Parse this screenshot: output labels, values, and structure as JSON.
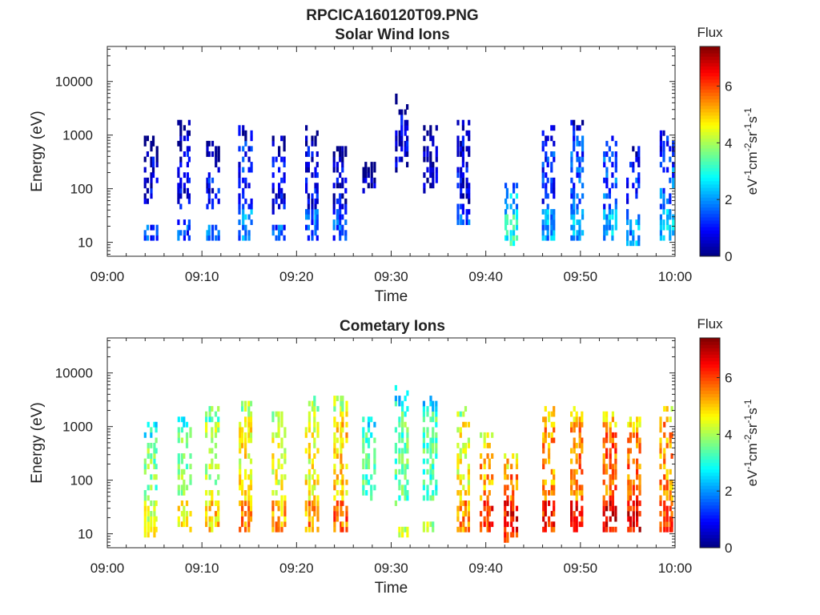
{
  "figure": {
    "title": "RPCICA160120T09.PNG"
  },
  "colorbar": {
    "title": "Flux",
    "label_main": "eV",
    "label_parts": [
      "eV",
      "-1",
      "cm",
      "-2",
      "sr",
      "-1",
      "s",
      "-1"
    ],
    "range": [
      0,
      7.4
    ],
    "ticks": [
      0,
      2,
      4,
      6
    ],
    "tick_labels": [
      "0",
      "2",
      "4",
      "6"
    ],
    "colormap": "jet"
  },
  "chart_data": [
    {
      "type": "heatmap",
      "title": "Solar Wind Ions",
      "xlabel": "Time",
      "ylabel": "Energy (eV)",
      "xlim": [
        "09:00",
        "10:00"
      ],
      "x_ticks": [
        "09:00",
        "09:10",
        "09:20",
        "09:30",
        "09:40",
        "09:50",
        "10:00"
      ],
      "y_scale": "log",
      "ylim": [
        5.5,
        45000
      ],
      "y_ticks": [
        10,
        100,
        1000,
        10000
      ],
      "y_tick_labels": [
        "10",
        "100",
        "1000",
        "10000"
      ],
      "z_label": "Flux",
      "bursts": [
        {
          "t": "09:04.5",
          "e_lo": 60,
          "e_hi": 900,
          "low_band": [
            10,
            22
          ],
          "flux": 0.6
        },
        {
          "t": "09:08.0",
          "e_lo": 50,
          "e_hi": 1800,
          "low_band": [
            12,
            25
          ],
          "flux": 0.6
        },
        {
          "t": "09:11.0",
          "e_lo": 40,
          "e_hi": 700,
          "low_band": [
            12,
            22
          ],
          "flux": 0.9
        },
        {
          "t": "09:14.5",
          "e_lo": 35,
          "e_hi": 1400,
          "low_band": [
            12,
            40
          ],
          "flux": 1.1
        },
        {
          "t": "09:18.0",
          "e_lo": 40,
          "e_hi": 1000,
          "low_band": [
            12,
            22
          ],
          "flux": 0.7
        },
        {
          "t": "09:21.5",
          "e_lo": 40,
          "e_hi": 1300,
          "low_band": [
            12,
            40
          ],
          "flux": 0.8
        },
        {
          "t": "09:24.5",
          "e_lo": 40,
          "e_hi": 700,
          "low_band": [
            12,
            40
          ],
          "flux": 0.6
        },
        {
          "t": "09:27.5",
          "e_lo": 100,
          "e_hi": 300,
          "low_band": null,
          "flux": 0.4
        },
        {
          "t": "09:31.0",
          "e_lo": 250,
          "e_hi": 5000,
          "low_band": null,
          "flux": 0.6
        },
        {
          "t": "09:34.0",
          "e_lo": 100,
          "e_hi": 1500,
          "low_band": null,
          "flux": 0.5
        },
        {
          "t": "09:37.5",
          "e_lo": 40,
          "e_hi": 1800,
          "low_band": [
            20,
            40
          ],
          "flux": 0.7
        },
        {
          "t": "09:42.5",
          "e_lo": 12,
          "e_hi": 150,
          "low_band": [
            8,
            30
          ],
          "flux": 2.2
        },
        {
          "t": "09:46.5",
          "e_lo": 20,
          "e_hi": 1500,
          "low_band": [
            10,
            40
          ],
          "flux": 1.2
        },
        {
          "t": "09:49.5",
          "e_lo": 40,
          "e_hi": 2000,
          "low_band": [
            12,
            40
          ],
          "flux": 1.4
        },
        {
          "t": "09:53.0",
          "e_lo": 40,
          "e_hi": 900,
          "low_band": [
            12,
            40
          ],
          "flux": 1.5
        },
        {
          "t": "09:55.5",
          "e_lo": 40,
          "e_hi": 600,
          "low_band": [
            8,
            30
          ],
          "flux": 1.2
        },
        {
          "t": "09:59.0",
          "e_lo": 40,
          "e_hi": 1100,
          "low_band": [
            12,
            40
          ],
          "flux": 1.6
        }
      ]
    },
    {
      "type": "heatmap",
      "title": "Cometary Ions",
      "xlabel": "Time",
      "ylabel": "Energy (eV)",
      "xlim": [
        "09:00",
        "10:00"
      ],
      "x_ticks": [
        "09:00",
        "09:10",
        "09:20",
        "09:30",
        "09:40",
        "09:50",
        "10:00"
      ],
      "y_scale": "log",
      "ylim": [
        5.5,
        45000
      ],
      "y_ticks": [
        10,
        100,
        1000,
        10000
      ],
      "y_tick_labels": [
        "10",
        "100",
        "1000",
        "10000"
      ],
      "z_label": "Flux",
      "bursts": [
        {
          "t": "09:04.5",
          "e_lo": 50,
          "e_hi": 1300,
          "low_band": [
            8,
            40
          ],
          "flux": 3.6
        },
        {
          "t": "09:08.0",
          "e_lo": 60,
          "e_hi": 1400,
          "low_band": [
            12,
            40
          ],
          "flux": 3.8
        },
        {
          "t": "09:11.0",
          "e_lo": 40,
          "e_hi": 2500,
          "low_band": [
            12,
            40
          ],
          "flux": 4.1
        },
        {
          "t": "09:14.5",
          "e_lo": 40,
          "e_hi": 3000,
          "low_band": [
            10,
            40
          ],
          "flux": 4.6
        },
        {
          "t": "09:18.0",
          "e_lo": 40,
          "e_hi": 2000,
          "low_band": [
            10,
            40
          ],
          "flux": 4.4
        },
        {
          "t": "09:21.5",
          "e_lo": 40,
          "e_hi": 3500,
          "low_band": [
            10,
            40
          ],
          "flux": 4.6
        },
        {
          "t": "09:24.5",
          "e_lo": 40,
          "e_hi": 3500,
          "low_band": [
            10,
            40
          ],
          "flux": 4.9
        },
        {
          "t": "09:27.5",
          "e_lo": 40,
          "e_hi": 1500,
          "low_band": null,
          "flux": 3.3
        },
        {
          "t": "09:31.0",
          "e_lo": 40,
          "e_hi": 5000,
          "low_band": [
            8,
            14
          ],
          "flux": 3.4
        },
        {
          "t": "09:34.0",
          "e_lo": 40,
          "e_hi": 3500,
          "low_band": [
            10,
            16
          ],
          "flux": 3.3
        },
        {
          "t": "09:37.5",
          "e_lo": 40,
          "e_hi": 2500,
          "low_band": [
            12,
            40
          ],
          "flux": 4.6
        },
        {
          "t": "09:40.0",
          "e_lo": 20,
          "e_hi": 800,
          "low_band": [
            10,
            40
          ],
          "flux": 5.3
        },
        {
          "t": "09:42.5",
          "e_lo": 8,
          "e_hi": 300,
          "low_band": [
            8,
            40
          ],
          "flux": 5.6
        },
        {
          "t": "09:46.5",
          "e_lo": 30,
          "e_hi": 2500,
          "low_band": [
            10,
            40
          ],
          "flux": 5.4
        },
        {
          "t": "09:49.5",
          "e_lo": 30,
          "e_hi": 2500,
          "low_band": [
            10,
            40
          ],
          "flux": 5.6
        },
        {
          "t": "09:53.0",
          "e_lo": 30,
          "e_hi": 2000,
          "low_band": [
            10,
            40
          ],
          "flux": 5.8
        },
        {
          "t": "09:55.5",
          "e_lo": 30,
          "e_hi": 1500,
          "low_band": [
            10,
            40
          ],
          "flux": 5.7
        },
        {
          "t": "09:59.0",
          "e_lo": 30,
          "e_hi": 2500,
          "low_band": [
            10,
            40
          ],
          "flux": 5.4
        }
      ]
    }
  ]
}
